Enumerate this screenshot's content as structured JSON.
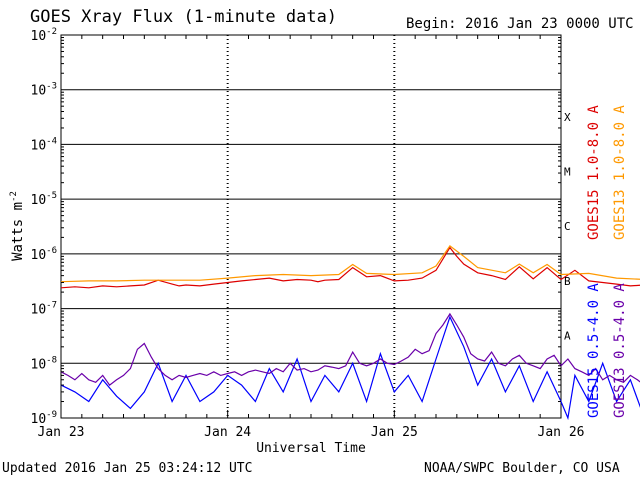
{
  "header": {
    "title": "GOES Xray Flux (1-minute data)",
    "begin": "Begin:  2016 Jan 23 0000 UTC"
  },
  "footer": {
    "updated": "Updated 2016 Jan 25 03:24:12 UTC",
    "source": "NOAA/SWPC Boulder, CO USA"
  },
  "chart_data": {
    "type": "line",
    "title": "GOES Xray Flux (1-minute data)",
    "xlabel": "Universal Time",
    "ylabel": "Watts m",
    "ylabel_superscript": "-2",
    "y_scale": "log",
    "ylim": [
      1e-09,
      0.01
    ],
    "xlim": [
      "2016-01-23 00:00",
      "2016-01-26 00:00"
    ],
    "grid": true,
    "y_ticks": [
      {
        "base": "10",
        "exp": "-2",
        "value": 0.01
      },
      {
        "base": "10",
        "exp": "-3",
        "value": 0.001
      },
      {
        "base": "10",
        "exp": "-4",
        "value": 0.0001
      },
      {
        "base": "10",
        "exp": "-5",
        "value": 1e-05
      },
      {
        "base": "10",
        "exp": "-6",
        "value": 1e-06
      },
      {
        "base": "10",
        "exp": "-7",
        "value": 1e-07
      },
      {
        "base": "10",
        "exp": "-8",
        "value": 1e-08
      },
      {
        "base": "10",
        "exp": "-9",
        "value": 1e-09
      }
    ],
    "x_ticks": [
      {
        "label": "Jan 23",
        "value": "2016-01-23 00:00"
      },
      {
        "label": "Jan 24",
        "value": "2016-01-24 00:00"
      },
      {
        "label": "Jan 25",
        "value": "2016-01-25 00:00"
      },
      {
        "label": "Jan 26",
        "value": "2016-01-26 00:00"
      }
    ],
    "flare_classes": [
      {
        "label": "X",
        "value": 0.00032
      },
      {
        "label": "M",
        "value": 3.2e-05
      },
      {
        "label": "C",
        "value": 3.2e-06
      },
      {
        "label": "B",
        "value": 3.2e-07
      },
      {
        "label": "A",
        "value": 3.2e-08
      }
    ],
    "legend_placement": "right",
    "series": [
      {
        "name": "GOES15 1.0-8.0 A",
        "color": "#dd0000",
        "x_hours": [
          0,
          2,
          4,
          6,
          8,
          10,
          12,
          14,
          16,
          17,
          18,
          20,
          22,
          24,
          26,
          28,
          30,
          32,
          34,
          36,
          37,
          38,
          40,
          42,
          44,
          46,
          48,
          50,
          52,
          54,
          56,
          57,
          58,
          60,
          62,
          64,
          66,
          68,
          70,
          72,
          74,
          76,
          78,
          80,
          82,
          84,
          86,
          88,
          90,
          92
        ],
        "y": [
          2.4e-07,
          2.5e-07,
          2.4e-07,
          2.6e-07,
          2.5e-07,
          2.6e-07,
          2.7e-07,
          3.3e-07,
          2.8e-07,
          2.6e-07,
          2.7e-07,
          2.6e-07,
          2.8e-07,
          3e-07,
          3.2e-07,
          3.4e-07,
          3.6e-07,
          3.2e-07,
          3.4e-07,
          3.3e-07,
          3.1e-07,
          3.3e-07,
          3.4e-07,
          5.6e-07,
          3.8e-07,
          4e-07,
          3.2e-07,
          3.3e-07,
          3.6e-07,
          5e-07,
          1.3e-06,
          9e-07,
          6.5e-07,
          4.5e-07,
          4e-07,
          3.4e-07,
          5.8e-07,
          3.5e-07,
          5.6e-07,
          3.4e-07,
          5e-07,
          3.2e-07,
          3e-07,
          2.8e-07,
          2.6e-07,
          2.7e-07,
          2.5e-07,
          2.8e-07,
          2.6e-07,
          2.6e-07
        ]
      },
      {
        "name": "GOES13 1.0-8.0 A",
        "color": "#ff9900",
        "x_hours": [
          0,
          4,
          8,
          12,
          16,
          20,
          24,
          28,
          32,
          36,
          40,
          42,
          44,
          48,
          52,
          54,
          56,
          58,
          60,
          64,
          66,
          68,
          70,
          72,
          76,
          80,
          84,
          88,
          92
        ],
        "y": [
          3.1e-07,
          3.2e-07,
          3.2e-07,
          3.3e-07,
          3.3e-07,
          3.3e-07,
          3.6e-07,
          4e-07,
          4.2e-07,
          4e-07,
          4.2e-07,
          6.4e-07,
          4.4e-07,
          4.2e-07,
          4.5e-07,
          6e-07,
          1.4e-06,
          9e-07,
          5.6e-07,
          4.5e-07,
          6.5e-07,
          4.5e-07,
          6.4e-07,
          4.2e-07,
          4.4e-07,
          3.6e-07,
          3.4e-07,
          3.4e-07,
          3.4e-07
        ]
      },
      {
        "name": "GOES15 0.5-4.0 A",
        "color": "#0000ff",
        "x_hours": [
          0,
          2,
          4,
          6,
          8,
          10,
          12,
          14,
          16,
          18,
          20,
          22,
          24,
          26,
          28,
          30,
          32,
          34,
          36,
          38,
          40,
          42,
          44,
          46,
          48,
          50,
          52,
          54,
          56,
          58,
          60,
          62,
          64,
          66,
          68,
          70,
          72,
          73,
          74,
          76,
          78,
          80,
          82,
          84,
          86,
          88,
          90,
          92
        ],
        "y": [
          4e-09,
          3e-09,
          2e-09,
          5e-09,
          2.5e-09,
          1.5e-09,
          3e-09,
          1e-08,
          2e-09,
          6e-09,
          2e-09,
          3e-09,
          6e-09,
          4e-09,
          2e-09,
          8e-09,
          3e-09,
          1.2e-08,
          2e-09,
          6e-09,
          3e-09,
          1e-08,
          2e-09,
          1.5e-08,
          3e-09,
          6e-09,
          2e-09,
          1.2e-08,
          7e-08,
          2e-08,
          4e-09,
          1.2e-08,
          3e-09,
          9e-09,
          2e-09,
          7e-09,
          2e-09,
          1e-09,
          6e-09,
          2e-09,
          1e-08,
          2e-09,
          5e-09,
          1e-09,
          4e-09,
          1e-09,
          6e-08,
          2e-09
        ]
      },
      {
        "name": "GOES13 0.5-4.0 A",
        "color": "#6a00aa",
        "x_hours": [
          0,
          1,
          2,
          3,
          4,
          5,
          6,
          7,
          8,
          9,
          10,
          11,
          12,
          13,
          14,
          15,
          16,
          17,
          18,
          19,
          20,
          21,
          22,
          23,
          24,
          25,
          26,
          27,
          28,
          29,
          30,
          31,
          32,
          33,
          34,
          35,
          36,
          37,
          38,
          39,
          40,
          41,
          42,
          43,
          44,
          45,
          46,
          47,
          48,
          49,
          50,
          51,
          52,
          53,
          54,
          55,
          56,
          57,
          58,
          59,
          60,
          61,
          62,
          63,
          64,
          65,
          66,
          67,
          68,
          69,
          70,
          71,
          72,
          73,
          74,
          75,
          76,
          77,
          78,
          79,
          80,
          81,
          82,
          83,
          84,
          85,
          86,
          87,
          88,
          89,
          90,
          91,
          92
        ],
        "y": [
          7e-09,
          6e-09,
          5e-09,
          6.5e-09,
          5e-09,
          4.5e-09,
          6e-09,
          4e-09,
          5e-09,
          6e-09,
          8e-09,
          1.8e-08,
          2.3e-08,
          1.3e-08,
          8e-09,
          6e-09,
          5e-09,
          6e-09,
          5.5e-09,
          6e-09,
          6.5e-09,
          6e-09,
          7e-09,
          6e-09,
          6.5e-09,
          7e-09,
          6e-09,
          7e-09,
          7.5e-09,
          7e-09,
          6.5e-09,
          8e-09,
          7e-09,
          1e-08,
          7.5e-09,
          8e-09,
          7e-09,
          7.5e-09,
          9e-09,
          8.5e-09,
          8e-09,
          9e-09,
          1.6e-08,
          1e-08,
          9e-09,
          1e-08,
          1.2e-08,
          1e-08,
          9.5e-09,
          1.1e-08,
          1.3e-08,
          1.8e-08,
          1.5e-08,
          1.7e-08,
          3.5e-08,
          5e-08,
          8e-08,
          5e-08,
          3e-08,
          1.5e-08,
          1.2e-08,
          1.1e-08,
          1.6e-08,
          1e-08,
          9e-09,
          1.2e-08,
          1.4e-08,
          1e-08,
          9e-09,
          8e-09,
          1.2e-08,
          1.4e-08,
          9e-09,
          1.2e-08,
          8e-09,
          7e-09,
          6e-09,
          8e-09,
          5e-09,
          6e-09,
          5e-09,
          4.5e-09,
          6e-09,
          5e-09,
          4e-09,
          5e-09,
          4.5e-09,
          4e-09,
          4e-09,
          3e-09,
          3.5e-09,
          2.5e-09,
          2e-09
        ]
      }
    ]
  }
}
